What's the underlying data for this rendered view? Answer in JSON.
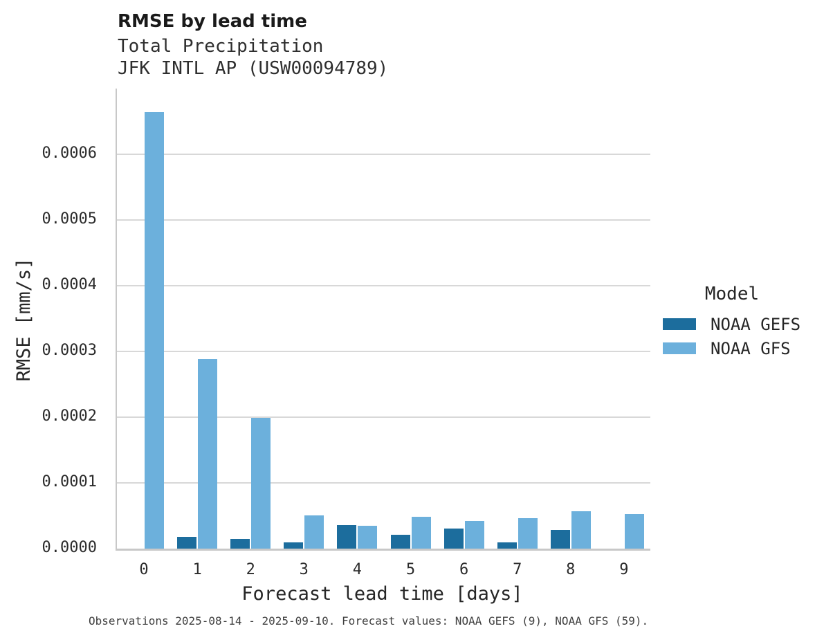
{
  "header": {
    "title": "RMSE by lead time",
    "subtitle_line1": "Total Precipitation",
    "subtitle_line2": "JFK INTL AP (USW00094789)"
  },
  "legend": {
    "title": "Model"
  },
  "caption": "Observations 2025-08-14 - 2025-09-10. Forecast values: NOAA GEFS (9), NOAA GFS (59).",
  "colors": {
    "noaa_gefs": "#1c6d9d",
    "noaa_gfs": "#6cb0dc",
    "grid": "#d8d8d8",
    "spine": "#c8c8c8"
  },
  "chart_data": {
    "type": "bar",
    "title": "RMSE by lead time",
    "subtitle": "Total Precipitation — JFK INTL AP (USW00094789)",
    "xlabel": "Forecast lead time [days]",
    "ylabel": "RMSE [mm/s]",
    "categories": [
      "0",
      "1",
      "2",
      "3",
      "4",
      "5",
      "6",
      "7",
      "8",
      "9"
    ],
    "series": [
      {
        "name": "NOAA GEFS",
        "color": "#1c6d9d",
        "values": [
          null,
          1.8e-05,
          1.5e-05,
          9e-06,
          3.6e-05,
          2.1e-05,
          3.1e-05,
          9e-06,
          2.8e-05,
          null
        ]
      },
      {
        "name": "NOAA GFS",
        "color": "#6cb0dc",
        "values": [
          0.000664,
          0.000288,
          0.000199,
          5.1e-05,
          3.5e-05,
          4.8e-05,
          4.2e-05,
          4.6e-05,
          5.7e-05,
          5.3e-05
        ]
      }
    ],
    "ylim": [
      0,
      0.0007
    ],
    "yticks": [
      0.0,
      0.0001,
      0.0002,
      0.0003,
      0.0004,
      0.0005,
      0.0006
    ],
    "ytick_labels": [
      "0.0000",
      "0.0001",
      "0.0002",
      "0.0003",
      "0.0004",
      "0.0005",
      "0.0006"
    ],
    "grid": true,
    "legend_title": "Model",
    "legend_position": "right"
  }
}
